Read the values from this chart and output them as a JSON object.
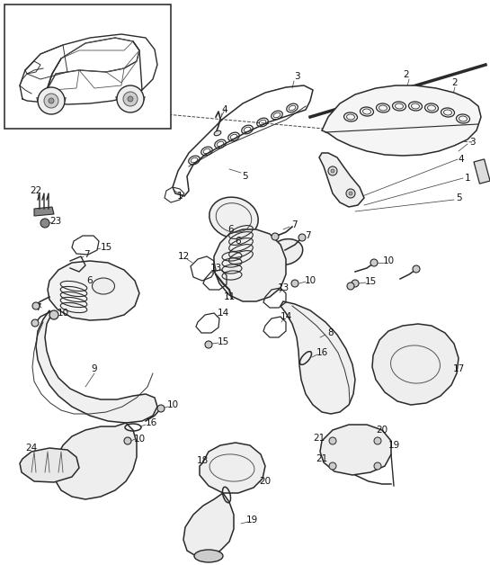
{
  "bg_color": "#ffffff",
  "line_color": "#2a2a2a",
  "fig_width": 5.45,
  "fig_height": 6.28,
  "dpi": 100
}
